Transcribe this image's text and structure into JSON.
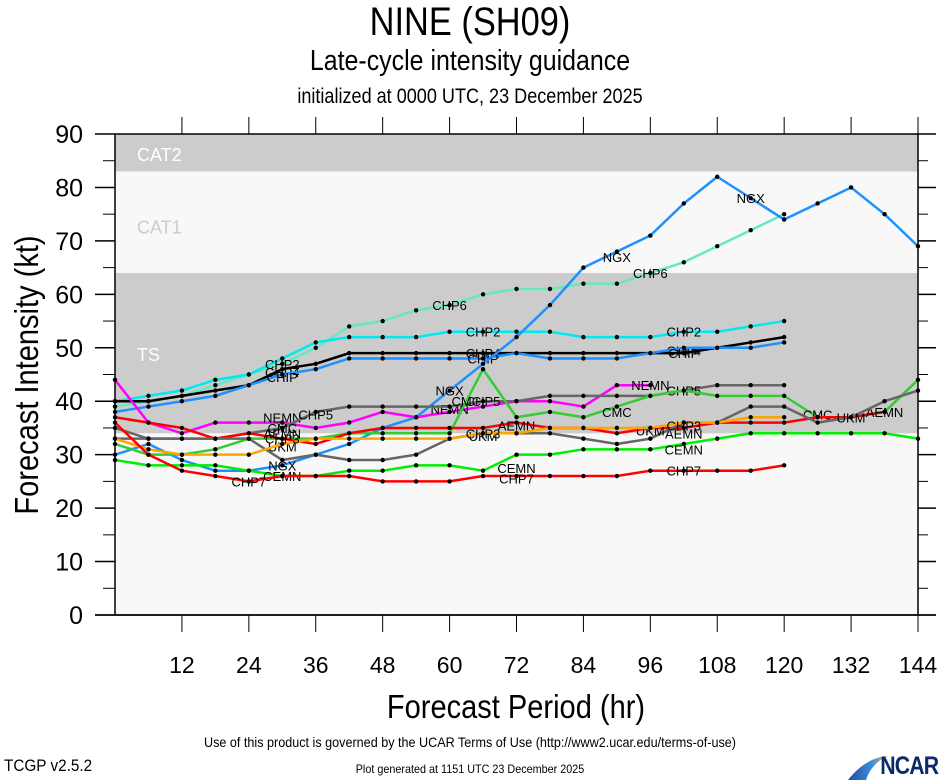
{
  "titles": {
    "main": "NINE (SH09)",
    "sub": "Late-cycle intensity guidance",
    "init": "initialized at 0000 UTC, 23 December 2025"
  },
  "footer": {
    "terms": "Use of this product is governed by the UCAR Terms of Use (http://www2.ucar.edu/terms-of-use)",
    "generated": "Plot generated at 1151 UTC   23 December 2025",
    "version": "TCGP v2.5.2",
    "logo_text": "NCAR"
  },
  "chart_data": {
    "type": "line",
    "title": "NINE (SH09)",
    "subtitle": "Late-cycle intensity guidance",
    "xlabel": "Forecast Period (hr)",
    "ylabel": "Forecast Intensity (kt)",
    "xlim": [
      0,
      144
    ],
    "ylim": [
      0,
      90
    ],
    "xticks": [
      12,
      24,
      36,
      48,
      60,
      72,
      84,
      96,
      108,
      120,
      132,
      144
    ],
    "yticks": [
      0,
      10,
      20,
      30,
      40,
      50,
      60,
      70,
      80,
      90
    ],
    "grid": false,
    "bands": [
      {
        "label": "TS",
        "from": 34,
        "to": 64,
        "color": "#cccccc",
        "label_color": "#ffffff"
      },
      {
        "label": "CAT1",
        "from": 64,
        "to": 83,
        "color": "#f8f8f8",
        "label_color": "#cccccc"
      },
      {
        "label": "CAT2",
        "from": 83,
        "to": 96,
        "color": "#cccccc",
        "label_color": "#ffffff"
      }
    ],
    "background_color": "#f8f8f8",
    "x": [
      0,
      6,
      12,
      18,
      24,
      30,
      36,
      42,
      48,
      54,
      60,
      66,
      72,
      78,
      84,
      90,
      96,
      102,
      108,
      114,
      120,
      126,
      132,
      138,
      144
    ],
    "series": [
      {
        "name": "CHP6",
        "color": "#66e8c0",
        "label_at": [
          [
            60,
            58
          ],
          [
            96,
            64
          ]
        ],
        "values": [
          39,
          40,
          41,
          43,
          45,
          47,
          50,
          54,
          55,
          57,
          58,
          60,
          61,
          61,
          62,
          62,
          64,
          66,
          69,
          72,
          75
        ]
      },
      {
        "name": "CHP2",
        "color": "#00e8f0",
        "label_at": [
          [
            30,
            47
          ],
          [
            66,
            53
          ],
          [
            102,
            53
          ]
        ],
        "values": [
          40,
          41,
          42,
          44,
          45,
          48,
          51,
          52,
          52,
          52,
          53,
          53,
          53,
          53,
          52,
          52,
          52,
          53,
          53,
          54,
          55
        ]
      },
      {
        "name": "CHP4",
        "color": "#000000",
        "label_at": [
          [
            30,
            45.5
          ],
          [
            66,
            49
          ],
          [
            102,
            49.5
          ]
        ],
        "values": [
          40,
          40,
          41,
          42,
          43,
          46,
          47,
          49,
          49,
          49,
          49,
          49,
          49,
          49,
          49,
          49,
          49,
          49,
          50,
          51,
          52
        ]
      },
      {
        "name": "CHIP",
        "color": "#1e90ff",
        "label_at": [
          [
            30,
            44.5
          ],
          [
            66,
            48
          ],
          [
            102,
            49
          ]
        ],
        "values": [
          38,
          39,
          40,
          41,
          43,
          45,
          46,
          48,
          48,
          48,
          48,
          48,
          49,
          48,
          48,
          48,
          49,
          50,
          50,
          50,
          51
        ]
      },
      {
        "name": "NGX",
        "color": "#1e90ff",
        "label_at": [
          [
            30,
            28
          ],
          [
            60,
            42
          ],
          [
            90,
            67
          ],
          [
            114,
            78
          ]
        ],
        "values": [
          30,
          32,
          29,
          27,
          27,
          28,
          30,
          32,
          35,
          37,
          42,
          47,
          52,
          58,
          65,
          68,
          71,
          77,
          82,
          78,
          74,
          77,
          80,
          75,
          69
        ]
      },
      {
        "name": "NEMN",
        "color": "#ff00ff",
        "label_at": [
          [
            30,
            37
          ],
          [
            60,
            38.5
          ],
          [
            96,
            43
          ]
        ],
        "values": [
          44,
          36,
          34,
          36,
          36,
          36,
          35,
          36,
          38,
          37,
          38,
          39,
          40,
          40,
          39,
          43,
          43
        ]
      },
      {
        "name": "CHP5",
        "color": "#666666",
        "label_at": [
          [
            36,
            37.5
          ],
          [
            66,
            40
          ],
          [
            102,
            42
          ]
        ],
        "values": [
          35,
          33,
          33,
          33,
          34,
          35,
          38,
          39,
          39,
          39,
          39,
          40,
          40,
          41,
          41,
          41,
          41,
          42,
          43,
          43,
          43
        ]
      },
      {
        "name": "CMC",
        "color": "#33cc33",
        "label_at": [
          [
            30,
            35
          ],
          [
            63,
            40
          ],
          [
            90,
            38
          ],
          [
            126,
            37.5
          ]
        ],
        "values": [
          32,
          30,
          30,
          31,
          33,
          33,
          33,
          34,
          34,
          34,
          34,
          46,
          37,
          38,
          37,
          39,
          41,
          42,
          41,
          41,
          41,
          37,
          37,
          38,
          44
        ]
      },
      {
        "name": "AEMN",
        "color": "#ff0000",
        "label_at": [
          [
            30,
            34
          ],
          [
            72,
            35.5
          ],
          [
            102,
            34
          ],
          [
            138,
            38
          ]
        ],
        "values": [
          37,
          36,
          35,
          33,
          34,
          33,
          32,
          34,
          35,
          35,
          35,
          35,
          36,
          35,
          35,
          34,
          35,
          35,
          36,
          36,
          36,
          37,
          37,
          38
        ]
      },
      {
        "name": "UKM",
        "color": "#666666",
        "label_at": [
          [
            30,
            31.5
          ],
          [
            66,
            33.5
          ],
          [
            96,
            34.5
          ],
          [
            132,
            37
          ]
        ],
        "values": [
          33,
          33,
          33,
          33,
          33,
          29,
          30,
          29,
          29,
          30,
          33,
          34,
          34,
          34,
          33,
          32,
          33,
          36,
          36,
          39,
          39,
          36,
          37,
          40,
          42
        ]
      },
      {
        "name": "CHP3",
        "color": "#ffa500",
        "label_at": [
          [
            30,
            33
          ],
          [
            66,
            34
          ],
          [
            102,
            35.5
          ]
        ],
        "values": [
          33,
          31,
          30,
          30,
          30,
          32,
          33,
          33,
          33,
          33,
          33,
          34,
          34,
          35,
          35,
          35,
          35,
          36,
          36,
          37,
          37
        ]
      },
      {
        "name": "CEMN",
        "color": "#00ee00",
        "label_at": [
          [
            30,
            26
          ],
          [
            72,
            27.5
          ],
          [
            102,
            31
          ]
        ],
        "values": [
          29,
          28,
          28,
          28,
          27,
          26,
          26,
          27,
          27,
          28,
          28,
          27,
          30,
          30,
          31,
          31,
          31,
          32,
          33,
          34,
          34,
          34,
          34,
          34,
          33
        ]
      },
      {
        "name": "CHP7",
        "color": "#ff0000",
        "label_at": [
          [
            24,
            25
          ],
          [
            72,
            25.5
          ],
          [
            102,
            27
          ]
        ],
        "values": [
          36,
          30,
          27,
          26,
          25,
          26,
          26,
          26,
          25,
          25,
          25,
          26,
          26,
          26,
          26,
          26,
          27,
          27,
          27,
          27,
          28
        ]
      }
    ]
  }
}
